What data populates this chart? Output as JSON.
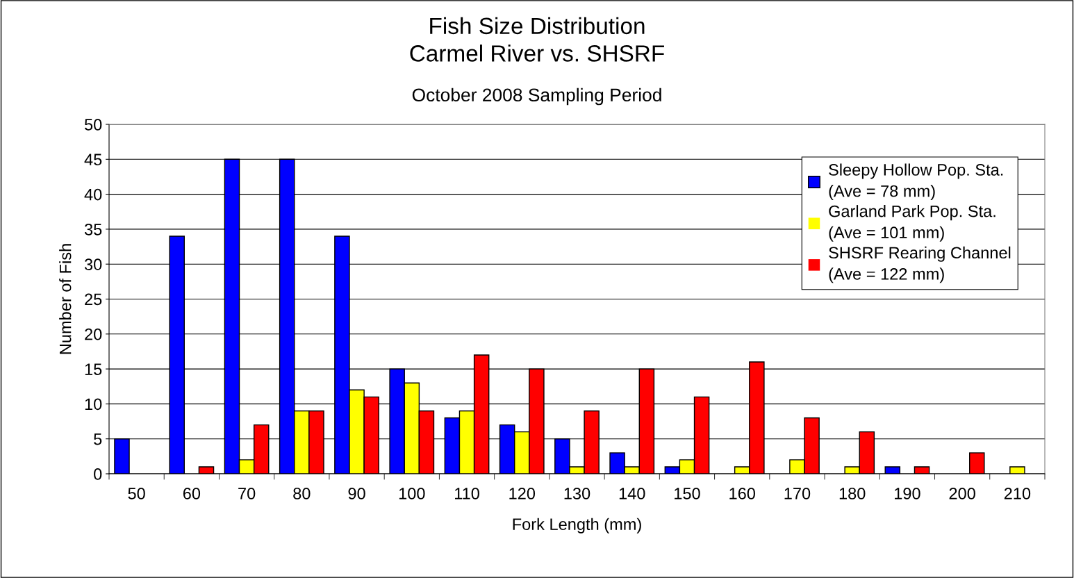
{
  "chart_data": {
    "type": "bar",
    "title": "Fish Size Distribution\nCarmel River vs. SHSRF",
    "subtitle": "October 2008 Sampling Period",
    "xlabel": "Fork Length (mm)",
    "ylabel": "Number of Fish",
    "categories": [
      "50",
      "60",
      "70",
      "80",
      "90",
      "100",
      "110",
      "120",
      "130",
      "140",
      "150",
      "160",
      "170",
      "180",
      "190",
      "200",
      "210"
    ],
    "series": [
      {
        "name": "Sleepy Hollow Pop. Sta.\n(Ave = 78 mm)",
        "color": "#0000ff",
        "values": [
          5,
          34,
          45,
          45,
          34,
          15,
          8,
          7,
          5,
          3,
          1,
          0,
          0,
          0,
          1,
          0,
          0
        ]
      },
      {
        "name": "Garland Park Pop. Sta.\n(Ave = 101 mm)",
        "color": "#ffff00",
        "values": [
          0,
          0,
          2,
          9,
          12,
          13,
          9,
          6,
          1,
          1,
          2,
          1,
          2,
          1,
          0,
          0,
          1
        ]
      },
      {
        "name": "SHSRF Rearing Channel\n(Ave = 122 mm)",
        "color": "#ff0000",
        "values": [
          0,
          1,
          7,
          9,
          11,
          9,
          17,
          15,
          9,
          15,
          11,
          16,
          8,
          6,
          1,
          3,
          0
        ]
      }
    ],
    "ylim": [
      0,
      50
    ],
    "yticks": [
      0,
      5,
      10,
      15,
      20,
      25,
      30,
      35,
      40,
      45,
      50
    ],
    "grid": "y",
    "legend": "top right"
  }
}
